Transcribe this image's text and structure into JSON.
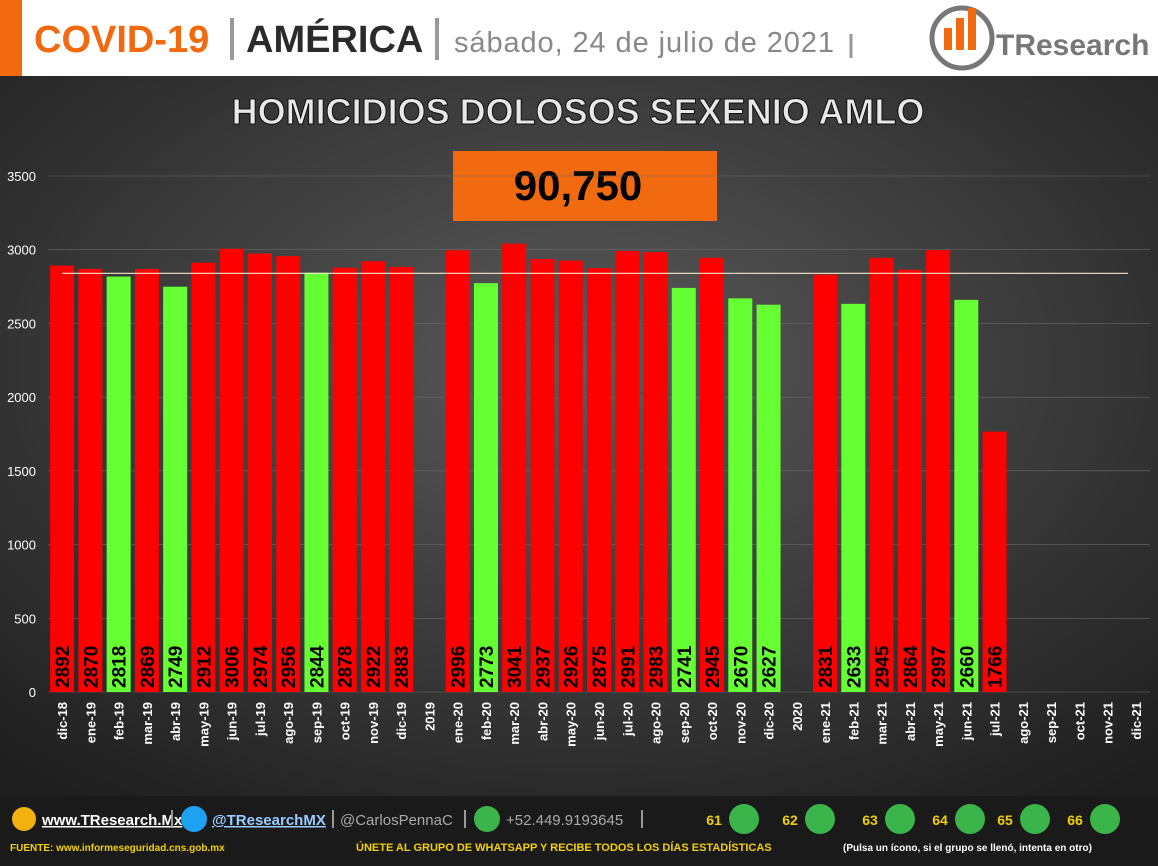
{
  "header": {
    "topic": "COVID-19",
    "region": "AMÉRICA",
    "date": "sábado, 24 de julio de 2021",
    "brand": "TResearch"
  },
  "chart_data": {
    "type": "bar",
    "title": "HOMICIDIOS DOLOSOS SEXENIO AMLO",
    "annotation": "90,750",
    "categories": [
      "dic-18",
      "ene-19",
      "feb-19",
      "mar-19",
      "abr-19",
      "may-19",
      "jun-19",
      "jul-19",
      "ago-19",
      "sep-19",
      "oct-19",
      "nov-19",
      "dic-19",
      "2019",
      "ene-20",
      "feb-20",
      "mar-20",
      "abr-20",
      "may-20",
      "jun-20",
      "jul-20",
      "ago-20",
      "sep-20",
      "oct-20",
      "nov-20",
      "dic-20",
      "2020",
      "ene-21",
      "feb-21",
      "mar-21",
      "abr-21",
      "may-21",
      "jun-21",
      "jul-21",
      "ago-21",
      "sep-21",
      "oct-21",
      "nov-21",
      "dic-21"
    ],
    "values": [
      2892,
      2870,
      2818,
      2869,
      2749,
      2912,
      3006,
      2974,
      2956,
      2844,
      2878,
      2922,
      2883,
      null,
      2996,
      2773,
      3041,
      2937,
      2926,
      2875,
      2991,
      2983,
      2741,
      2945,
      2670,
      2627,
      null,
      2831,
      2633,
      2945,
      2864,
      2997,
      2660,
      1766,
      null,
      null,
      null,
      null,
      null
    ],
    "colors": [
      "#ff0000",
      "#ff0000",
      "#66ff33",
      "#ff0000",
      "#66ff33",
      "#ff0000",
      "#ff0000",
      "#ff0000",
      "#ff0000",
      "#66ff33",
      "#ff0000",
      "#ff0000",
      "#ff0000",
      null,
      "#ff0000",
      "#66ff33",
      "#ff0000",
      "#ff0000",
      "#ff0000",
      "#ff0000",
      "#ff0000",
      "#ff0000",
      "#66ff33",
      "#ff0000",
      "#66ff33",
      "#66ff33",
      null,
      "#ff0000",
      "#66ff33",
      "#ff0000",
      "#ff0000",
      "#ff0000",
      "#66ff33",
      "#ff0000",
      null,
      null,
      null,
      null,
      null
    ],
    "reference_line": 2840,
    "ylim": [
      0,
      3500
    ],
    "yticks": [
      0,
      500,
      1000,
      1500,
      2000,
      2500,
      3000,
      3500
    ],
    "grid": true
  },
  "footer": {
    "website": "www.TResearch.Mx",
    "twitter": "@TResearchMX",
    "author": "@CarlosPennaC",
    "phone": "+52.449.9193645",
    "groups": [
      "61",
      "62",
      "63",
      "64",
      "65",
      "66"
    ],
    "source": "FUENTE: www.informeseguridad.cns.gob.mx",
    "invite": "ÚNETE AL GRUPO DE WHATSAPP Y RECIBE TODOS LOS DÍAS ESTADÍSTICAS",
    "note": "(Pulsa un ícono, si el grupo se llenó, intenta en otro)"
  }
}
